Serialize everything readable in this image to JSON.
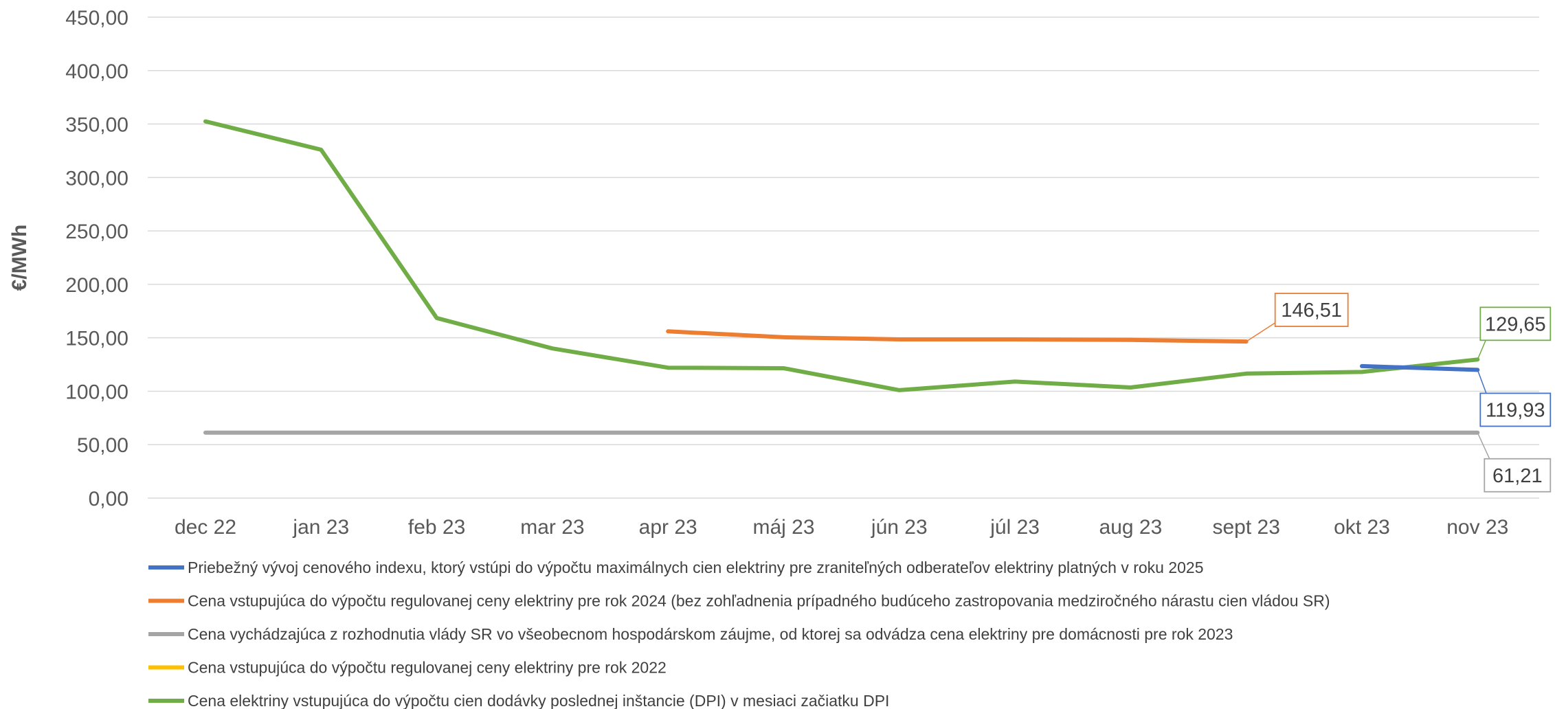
{
  "chart_data": {
    "type": "line",
    "ylabel": "€/MWh",
    "xlabel": "",
    "ylim": [
      0,
      450
    ],
    "y_ticks": [
      "0,00",
      "50,00",
      "100,00",
      "150,00",
      "200,00",
      "250,00",
      "300,00",
      "350,00",
      "400,00",
      "450,00"
    ],
    "y_tick_values": [
      0,
      50,
      100,
      150,
      200,
      250,
      300,
      350,
      400,
      450
    ],
    "categories": [
      "dec 22",
      "jan 23",
      "feb 23",
      "mar 23",
      "apr 23",
      "máj 23",
      "jún 23",
      "júl 23",
      "aug 23",
      "sept 23",
      "okt 23",
      "nov 23"
    ],
    "grid": "horizontal",
    "legend_placement": "bottom",
    "series": [
      {
        "name": "Priebežný vývoj cenového indexu, ktorý vstúpi do výpočtu maximálnych cien elektriny pre zraniteľných odberateľov elektriny platných v roku 2025",
        "color": "#4472C4",
        "values": [
          null,
          null,
          null,
          null,
          null,
          null,
          null,
          null,
          null,
          null,
          123.5,
          119.93
        ],
        "end_label": "119,93"
      },
      {
        "name": "Cena vstupujúca do výpočtu regulovanej ceny elektriny pre rok 2024 (bez zohľadnenia prípadného budúceho zastropovania medziročného nárastu cien vládou SR)",
        "color": "#ED7D31",
        "values": [
          null,
          null,
          null,
          null,
          156,
          150.5,
          148.5,
          148.5,
          148,
          146.51,
          null,
          null
        ],
        "end_label": "146,51"
      },
      {
        "name": "Cena vychádzajúca z rozhodnutia vlády SR vo všeobecnom hospodárskom záujme, od ktorej sa odvádza cena elektriny pre domácnosti pre rok 2023",
        "color": "#A5A5A5",
        "values": [
          61.21,
          61.21,
          61.21,
          61.21,
          61.21,
          61.21,
          61.21,
          61.21,
          61.21,
          61.21,
          61.21,
          61.21
        ],
        "end_label": "61,21"
      },
      {
        "name": "Cena vstupujúca do výpočtu regulovanej ceny elektriny pre rok 2022",
        "color": "#FFC000",
        "values": [
          null,
          null,
          null,
          null,
          null,
          null,
          null,
          null,
          null,
          null,
          null,
          null
        ],
        "end_label": ""
      },
      {
        "name": "Cena elektriny vstupujúca do výpočtu cien dodávky poslednej inštancie (DPI) v mesiaci začiatku DPI",
        "color": "#70AD47",
        "values": [
          352.5,
          326,
          168.5,
          140,
          122,
          121.5,
          101,
          109,
          103.5,
          116.5,
          118,
          129.65
        ],
        "end_label": "129,65"
      }
    ]
  }
}
